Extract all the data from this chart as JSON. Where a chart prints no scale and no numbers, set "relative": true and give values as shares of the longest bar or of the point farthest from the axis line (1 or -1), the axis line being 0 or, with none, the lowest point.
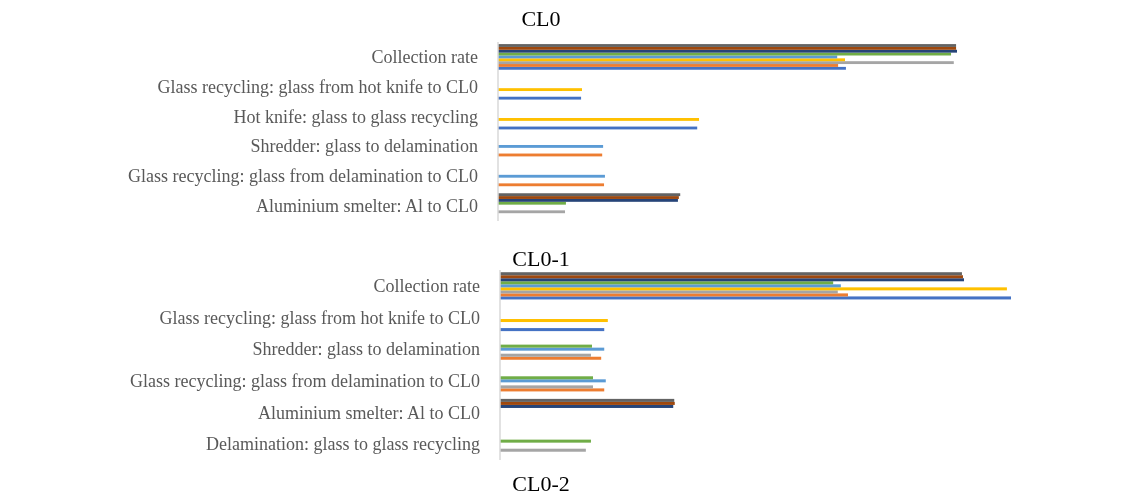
{
  "chart_data": [
    {
      "type": "bar",
      "title": "CL0",
      "orientation": "horizontal",
      "relative": true,
      "categories": [
        "Collection rate",
        "Glass recycling: glass from hot knife to CL0",
        "Hot knife: glass to glass recycling",
        "Shredder: glass to delamination",
        "Glass recycling: glass from delamination to CL0",
        "Aluminium smelter: Al to CL0"
      ],
      "series": [
        {
          "color": "#4472c4",
          "values": [
            0.758,
            0.181,
            0.434,
            null,
            null,
            null
          ]
        },
        {
          "color": "#ed7d31",
          "values": [
            0.741,
            null,
            null,
            0.227,
            0.231,
            null
          ]
        },
        {
          "color": "#a5a5a5",
          "values": [
            0.993,
            null,
            null,
            null,
            null,
            0.146
          ]
        },
        {
          "color": "#ffc000",
          "values": [
            0.756,
            0.183,
            0.438,
            null,
            null,
            null
          ]
        },
        {
          "color": "#5b9bd5",
          "values": [
            0.739,
            null,
            null,
            0.229,
            0.233,
            null
          ]
        },
        {
          "color": "#70ad47",
          "values": [
            0.987,
            null,
            null,
            null,
            null,
            0.148
          ]
        },
        {
          "color": "#264478",
          "values": [
            1,
            null,
            null,
            null,
            null,
            0.392
          ]
        },
        {
          "color": "#9e480e",
          "values": [
            0.998,
            null,
            null,
            null,
            null,
            0.394
          ]
        },
        {
          "color": "#636363",
          "values": [
            0.998,
            null,
            null,
            null,
            null,
            0.397
          ]
        }
      ]
    },
    {
      "type": "bar",
      "title": "CL0-1",
      "orientation": "horizontal",
      "relative": true,
      "categories": [
        "Collection rate",
        "Glass recycling: glass from hot knife to CL0",
        "Shredder: glass to delamination",
        "Glass recycling: glass from delamination to CL0",
        "Aluminium smelter: Al to CL0",
        "Delamination: glass to glass recycling"
      ],
      "series": [
        {
          "color": "#4472c4",
          "values": [
            1,
            0.204,
            null,
            null,
            null,
            null
          ]
        },
        {
          "color": "#ed7d31",
          "values": [
            0.681,
            null,
            0.198,
            0.204,
            null,
            null
          ]
        },
        {
          "color": "#a5a5a5",
          "values": [
            0.661,
            null,
            0.178,
            0.182,
            null,
            0.168
          ]
        },
        {
          "color": "#ffc000",
          "values": [
            0.992,
            0.211,
            null,
            null,
            null,
            null
          ]
        },
        {
          "color": "#5b9bd5",
          "values": [
            0.667,
            null,
            0.204,
            0.207,
            null,
            null
          ]
        },
        {
          "color": "#70ad47",
          "values": [
            0.652,
            null,
            0.18,
            0.182,
            null,
            0.178
          ]
        },
        {
          "color": "#264478",
          "values": [
            0.908,
            null,
            null,
            null,
            0.339,
            null
          ]
        },
        {
          "color": "#9e480e",
          "values": [
            0.906,
            null,
            null,
            null,
            0.342,
            null
          ]
        },
        {
          "color": "#636363",
          "values": [
            0.904,
            null,
            null,
            null,
            0.341,
            null
          ]
        }
      ]
    },
    {
      "type": "other",
      "title": "CL0-2"
    }
  ]
}
